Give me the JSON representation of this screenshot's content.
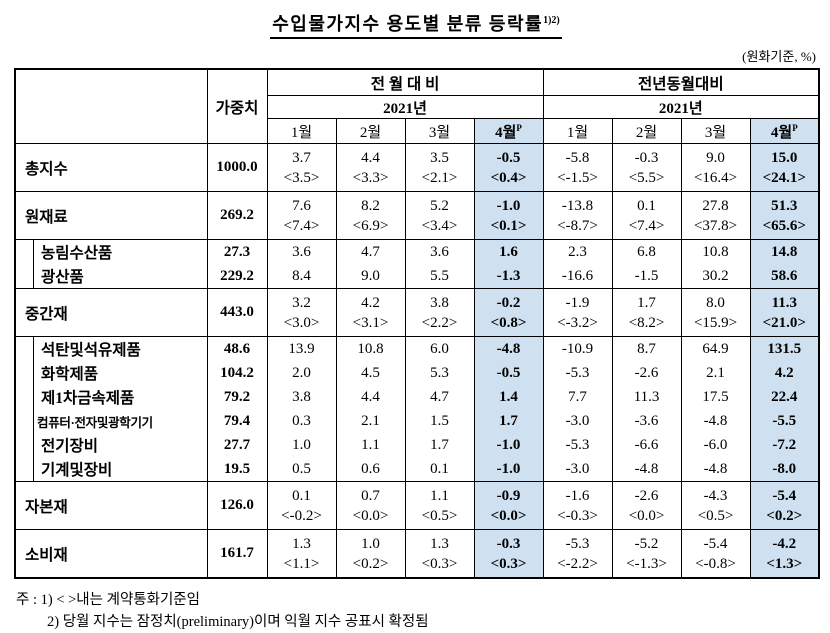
{
  "title": "수입물가지수 용도별 분류 등락률",
  "title_sup": "1)2)",
  "unit_note": "(원화기준, %)",
  "table": {
    "weight_label": "가중치",
    "p_mark": "P",
    "months": [
      "1월",
      "2월",
      "3월",
      "4월"
    ],
    "groups": [
      {
        "label": "전 월 대 비",
        "year": "2021년"
      },
      {
        "label": "전년동월대비",
        "year": "2021년"
      }
    ],
    "rows": [
      {
        "name": "총지수",
        "type": "major",
        "group_end": true,
        "weight": "1000.0",
        "mom": [
          "3.7",
          "4.4",
          "3.5",
          "-0.5"
        ],
        "mom_ccy": [
          "<3.5>",
          "<3.3>",
          "<2.1>",
          "<0.4>"
        ],
        "yoy": [
          "-5.8",
          "-0.3",
          "9.0",
          "15.0"
        ],
        "yoy_ccy": [
          "<-1.5>",
          "<5.5>",
          "<16.4>",
          "<24.1>"
        ]
      },
      {
        "name": "원재료",
        "type": "major",
        "group_end": true,
        "weight": "269.2",
        "mom": [
          "7.6",
          "8.2",
          "5.2",
          "-1.0"
        ],
        "mom_ccy": [
          "<7.4>",
          "<6.9>",
          "<3.4>",
          "<0.1>"
        ],
        "yoy": [
          "-13.8",
          "0.1",
          "27.8",
          "51.3"
        ],
        "yoy_ccy": [
          "<-8.7>",
          "<7.4>",
          "<37.8>",
          "<65.6>"
        ]
      },
      {
        "name": "농림수산품",
        "type": "sub",
        "group_end": false,
        "weight": "27.3",
        "mom": [
          "3.6",
          "4.7",
          "3.6",
          "1.6"
        ],
        "yoy": [
          "2.3",
          "6.8",
          "10.8",
          "14.8"
        ]
      },
      {
        "name": "광산품",
        "type": "sub",
        "group_end": true,
        "weight": "229.2",
        "mom": [
          "8.4",
          "9.0",
          "5.5",
          "-1.3"
        ],
        "yoy": [
          "-16.6",
          "-1.5",
          "30.2",
          "58.6"
        ]
      },
      {
        "name": "중간재",
        "type": "major",
        "group_end": true,
        "weight": "443.0",
        "mom": [
          "3.2",
          "4.2",
          "3.8",
          "-0.2"
        ],
        "mom_ccy": [
          "<3.0>",
          "<3.1>",
          "<2.2>",
          "<0.8>"
        ],
        "yoy": [
          "-1.9",
          "1.7",
          "8.0",
          "11.3"
        ],
        "yoy_ccy": [
          "<-3.2>",
          "<8.2>",
          "<15.9>",
          "<21.0>"
        ]
      },
      {
        "name": "석탄및석유제품",
        "type": "sub",
        "group_end": false,
        "weight": "48.6",
        "mom": [
          "13.9",
          "10.8",
          "6.0",
          "-4.8"
        ],
        "yoy": [
          "-10.9",
          "8.7",
          "64.9",
          "131.5"
        ]
      },
      {
        "name": "화학제품",
        "type": "sub",
        "group_end": false,
        "weight": "104.2",
        "mom": [
          "2.0",
          "4.5",
          "5.3",
          "-0.5"
        ],
        "yoy": [
          "-5.3",
          "-2.6",
          "2.1",
          "4.2"
        ]
      },
      {
        "name": "제1차금속제품",
        "type": "sub",
        "group_end": false,
        "weight": "79.2",
        "mom": [
          "3.8",
          "4.4",
          "4.7",
          "1.4"
        ],
        "yoy": [
          "7.7",
          "11.3",
          "17.5",
          "22.4"
        ]
      },
      {
        "name": "컴퓨터·전자및광학기기",
        "type": "sub",
        "group_end": false,
        "weight": "79.4",
        "mom": [
          "0.3",
          "2.1",
          "1.5",
          "1.7"
        ],
        "yoy": [
          "-3.0",
          "-3.6",
          "-4.8",
          "-5.5"
        ]
      },
      {
        "name": "전기장비",
        "type": "sub",
        "group_end": false,
        "weight": "27.7",
        "mom": [
          "1.0",
          "1.1",
          "1.7",
          "-1.0"
        ],
        "yoy": [
          "-5.3",
          "-6.6",
          "-6.0",
          "-7.2"
        ]
      },
      {
        "name": "기계및장비",
        "type": "sub",
        "group_end": true,
        "weight": "19.5",
        "mom": [
          "0.5",
          "0.6",
          "0.1",
          "-1.0"
        ],
        "yoy": [
          "-3.0",
          "-4.8",
          "-4.8",
          "-8.0"
        ]
      },
      {
        "name": "자본재",
        "type": "major",
        "group_end": true,
        "weight": "126.0",
        "mom": [
          "0.1",
          "0.7",
          "1.1",
          "-0.9"
        ],
        "mom_ccy": [
          "<-0.2>",
          "<0.0>",
          "<0.5>",
          "<0.0>"
        ],
        "yoy": [
          "-1.6",
          "-2.6",
          "-4.3",
          "-5.4"
        ],
        "yoy_ccy": [
          "<-0.3>",
          "<0.0>",
          "<0.5>",
          "<0.2>"
        ]
      },
      {
        "name": "소비재",
        "type": "major",
        "group_end": true,
        "weight": "161.7",
        "mom": [
          "1.3",
          "1.0",
          "1.3",
          "-0.3"
        ],
        "mom_ccy": [
          "<1.1>",
          "<0.2>",
          "<0.3>",
          "<0.3>"
        ],
        "yoy": [
          "-5.3",
          "-5.2",
          "-5.4",
          "-4.2"
        ],
        "yoy_ccy": [
          "<-2.2>",
          "<-1.3>",
          "<-0.8>",
          "<1.3>"
        ]
      }
    ]
  },
  "notes": {
    "line1": "주 : 1) < >내는 계약통화기준임",
    "line2": "2) 당월 지수는 잠정치(preliminary)이며 익월 지수 공표시 확정됨"
  },
  "colors": {
    "highlight": "#cfe0f1"
  }
}
